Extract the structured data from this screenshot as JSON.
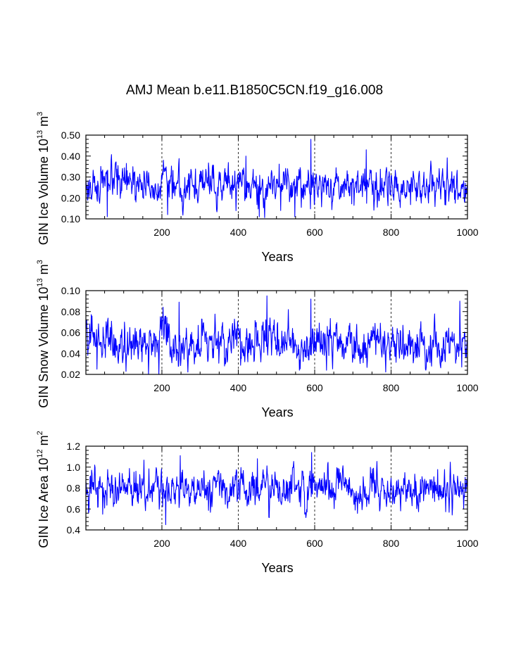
{
  "title": "AMJ Mean b.e11.B1850C5CN.f19_g16.008",
  "chart_data": [
    {
      "type": "line",
      "title": "AMJ Mean b.e11.B1850C5CN.f19_g16.008",
      "xlabel": "Years",
      "ylabel_text": "GIN Ice Volume 10",
      "ylabel_exp": "13",
      "ylabel_unit": " m",
      "ylabel_unit_exp": "3",
      "xlim": [
        1,
        1000
      ],
      "ylim": [
        0.1,
        0.5
      ],
      "xticks": [
        200,
        400,
        600,
        800,
        1000
      ],
      "xtick_labels": [
        "200",
        "400",
        "600",
        "800",
        "1000"
      ],
      "yticks": [
        0.1,
        0.2,
        0.3,
        0.4,
        0.5
      ],
      "ytick_labels": [
        "0.10",
        "0.20",
        "0.30",
        "0.40",
        "0.50"
      ],
      "grid_x": [
        200,
        400,
        600,
        800
      ],
      "series": {
        "name": "GIN Ice Volume",
        "color": "#0000ff",
        "mean": 0.26,
        "sd": 0.045,
        "peaks": [
          [
            590,
            0.48
          ],
          [
            735,
            0.43
          ],
          [
            420,
            0.4
          ],
          [
            57,
            0.11
          ],
          [
            455,
            0.11
          ],
          [
            548,
            0.11
          ],
          [
            215,
            0.12
          ]
        ]
      }
    },
    {
      "type": "line",
      "xlabel": "Years",
      "ylabel_text": "GIN Snow Volume 10",
      "ylabel_exp": "13",
      "ylabel_unit": " m",
      "ylabel_unit_exp": "3",
      "xlim": [
        1,
        1000
      ],
      "ylim": [
        0.02,
        0.1
      ],
      "xticks": [
        200,
        400,
        600,
        800,
        1000
      ],
      "xtick_labels": [
        "200",
        "400",
        "600",
        "800",
        "1000"
      ],
      "yticks": [
        0.02,
        0.04,
        0.06,
        0.08,
        0.1
      ],
      "ytick_labels": [
        "0.02",
        "0.04",
        "0.06",
        "0.08",
        "0.10"
      ],
      "grid_x": [
        200,
        400,
        600,
        800
      ],
      "series": {
        "name": "GIN Snow Volume",
        "color": "#0000ff",
        "mean": 0.05,
        "sd": 0.01,
        "peaks": [
          [
            475,
            0.095
          ],
          [
            590,
            0.092
          ],
          [
            980,
            0.09
          ],
          [
            245,
            0.089
          ],
          [
            30,
            0.025
          ],
          [
            560,
            0.024
          ],
          [
            985,
            0.027
          ]
        ]
      }
    },
    {
      "type": "line",
      "xlabel": "Years",
      "ylabel_text": "GIN Ice Area 10",
      "ylabel_exp": "12",
      "ylabel_unit": " m",
      "ylabel_unit_exp": "2",
      "xlim": [
        1,
        1000
      ],
      "ylim": [
        0.4,
        1.2
      ],
      "xticks": [
        200,
        400,
        600,
        800,
        1000
      ],
      "xtick_labels": [
        "200",
        "400",
        "600",
        "800",
        "1000"
      ],
      "yticks": [
        0.4,
        0.6,
        0.8,
        1.0,
        1.2
      ],
      "ytick_labels": [
        "0.4",
        "0.6",
        "0.8",
        "1.0",
        "1.2"
      ],
      "grid_x": [
        200,
        400,
        600,
        800
      ],
      "series": {
        "name": "GIN Ice Area",
        "color": "#0000ff",
        "mean": 0.79,
        "sd": 0.09,
        "peaks": [
          [
            592,
            1.14
          ],
          [
            248,
            1.11
          ],
          [
            450,
            1.08
          ],
          [
            210,
            0.45
          ],
          [
            480,
            0.52
          ],
          [
            45,
            0.55
          ]
        ]
      }
    }
  ]
}
